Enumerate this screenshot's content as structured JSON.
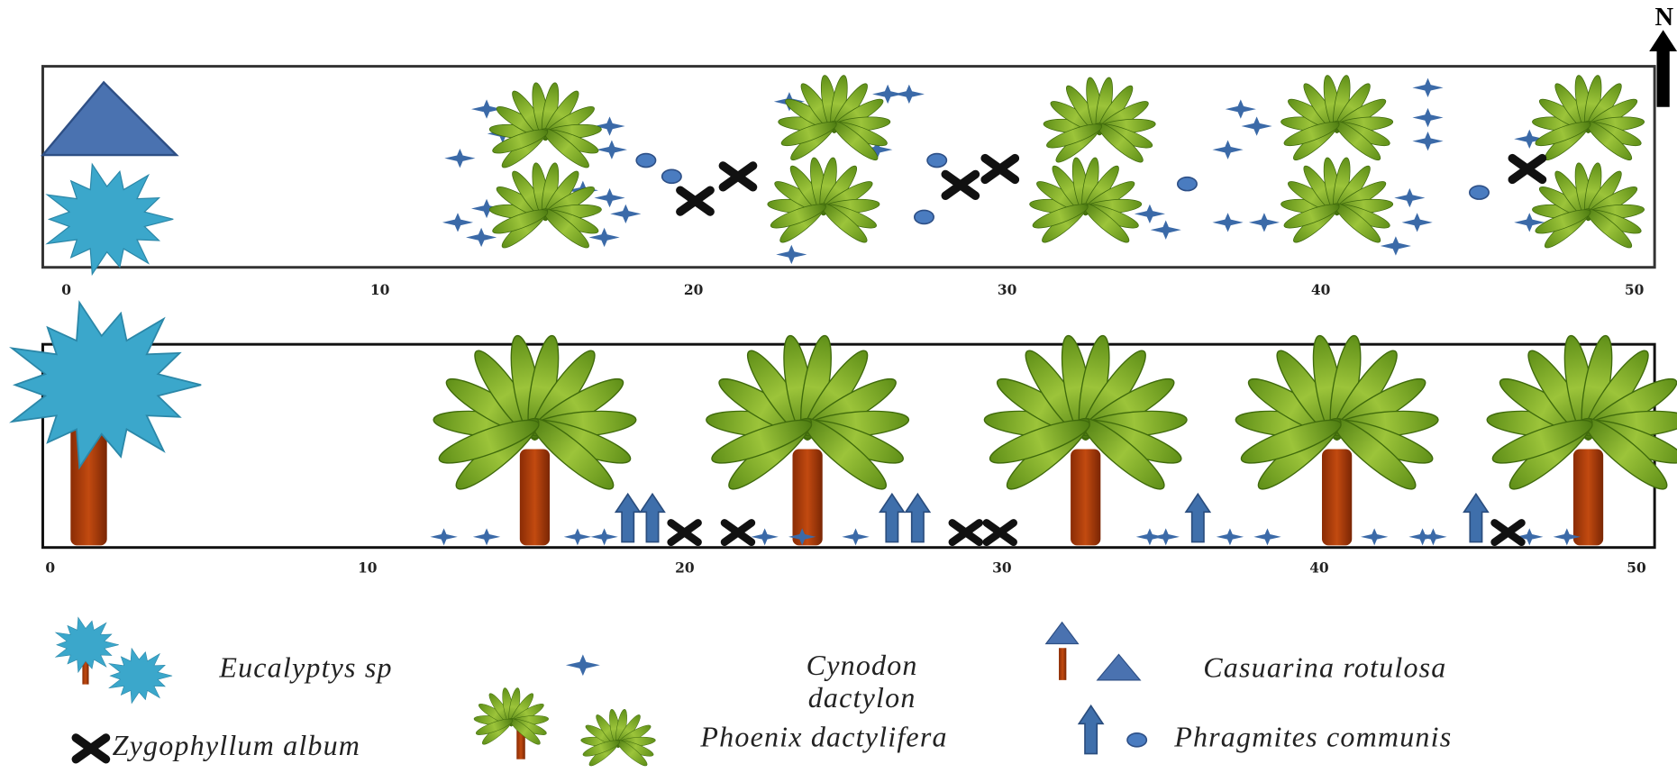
{
  "north": "N",
  "top_panel": {
    "ticks": [
      0,
      10,
      20,
      30,
      40,
      50
    ]
  },
  "bottom_panel": {
    "ticks": [
      0,
      10,
      20,
      30,
      40,
      50
    ]
  },
  "legend": {
    "eucalyptus": "Eucalyptys sp",
    "cynodon": [
      "Cynodon",
      "dactylon"
    ],
    "casuarina": "Casuarina rotulosa",
    "zygophyllum": "Zygophyllum album",
    "phoenix": "Phoenix dactylifera",
    "phragmites": "Phragmites communis"
  }
}
